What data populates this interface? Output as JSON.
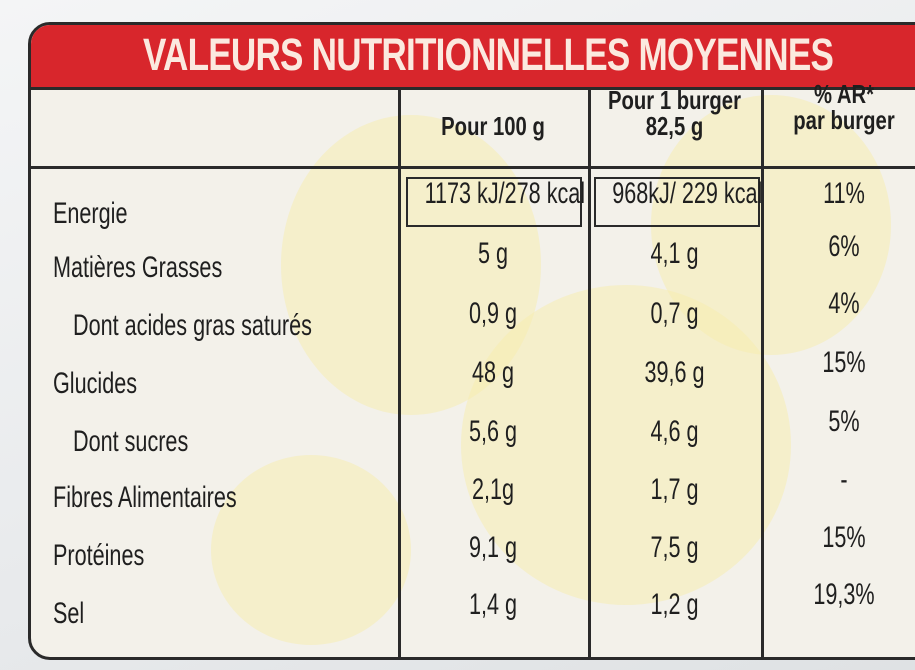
{
  "title": "VALEURS NUTRITIONNELLES MOYENNES",
  "columns": {
    "per100g": "Pour 100 g",
    "perBurgerLine1": "Pour 1 burger",
    "perBurgerLine2": "82,5 g",
    "arLine1": "% AR*",
    "arLine2": "par burger"
  },
  "rows": [
    {
      "label": "Energie",
      "per100g": "1173 kJ/278 kcal",
      "perBurger": "968kJ/ 229 kcal",
      "ar": "11%"
    },
    {
      "label": "Matières Grasses",
      "per100g": "5 g",
      "perBurger": "4,1 g",
      "ar": "6%"
    },
    {
      "label": "Dont acides gras saturés",
      "per100g": "0,9 g",
      "perBurger": "0,7 g",
      "ar": "4%"
    },
    {
      "label": "Glucides",
      "per100g": "48 g",
      "perBurger": "39,6 g",
      "ar": "15%"
    },
    {
      "label": "Dont sucres",
      "per100g": "5,6 g",
      "perBurger": "4,6 g",
      "ar": "5%"
    },
    {
      "label": "Fibres Alimentaires",
      "per100g": "2,1g",
      "perBurger": "1,7 g",
      "ar": "-"
    },
    {
      "label": "Protéines",
      "per100g": "9,1 g",
      "perBurger": "7,5 g",
      "ar": "15%"
    },
    {
      "label": "Sel",
      "per100g": "1,4 g",
      "perBurger": "1,2 g",
      "ar": "19,3%"
    }
  ]
}
